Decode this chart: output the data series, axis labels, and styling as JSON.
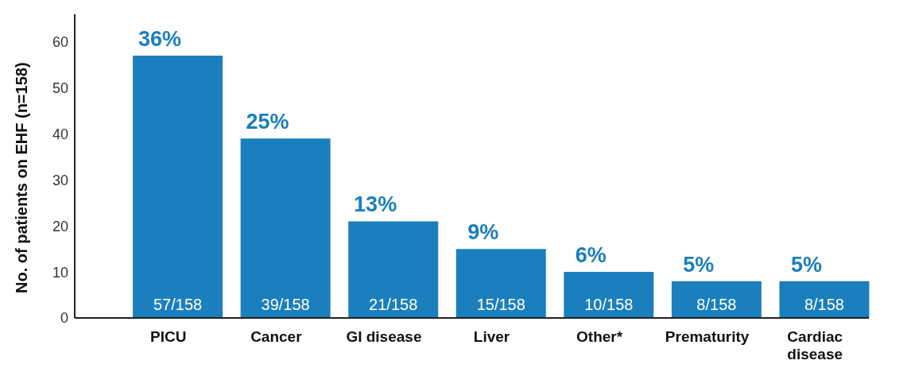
{
  "chart_data": {
    "type": "bar",
    "ylabel": "No. of patients on EHF (n=158)",
    "categories": [
      "PICU",
      "Cancer",
      "GI disease",
      "Liver",
      "Other*",
      "Prematurity",
      "Cardiac disease"
    ],
    "values": [
      57,
      39,
      21,
      15,
      10,
      8,
      8
    ],
    "color": "#1b7fbd",
    "value_labels": [
      "57/158",
      "39/158",
      "21/158",
      "15/158",
      "10/158",
      "8/158",
      "8/158"
    ],
    "annotations": [
      {
        "text": "36%",
        "x": "PICU",
        "y": 57
      },
      {
        "text": "25%",
        "x": "Cancer",
        "y": 39
      },
      {
        "text": "13%",
        "x": "GI disease",
        "y": 21
      },
      {
        "text": "9%",
        "x": "Liver",
        "y": 15
      },
      {
        "text": "6%",
        "x": "Other*",
        "y": 10
      },
      {
        "text": "5%",
        "x": "Prematurity",
        "y": 8
      },
      {
        "text": "5%",
        "x": "Cardiac disease",
        "y": 8
      }
    ],
    "ylim": [
      0,
      66
    ],
    "yticks": [
      0,
      10,
      20,
      30,
      40,
      50,
      60
    ],
    "grid": false
  }
}
